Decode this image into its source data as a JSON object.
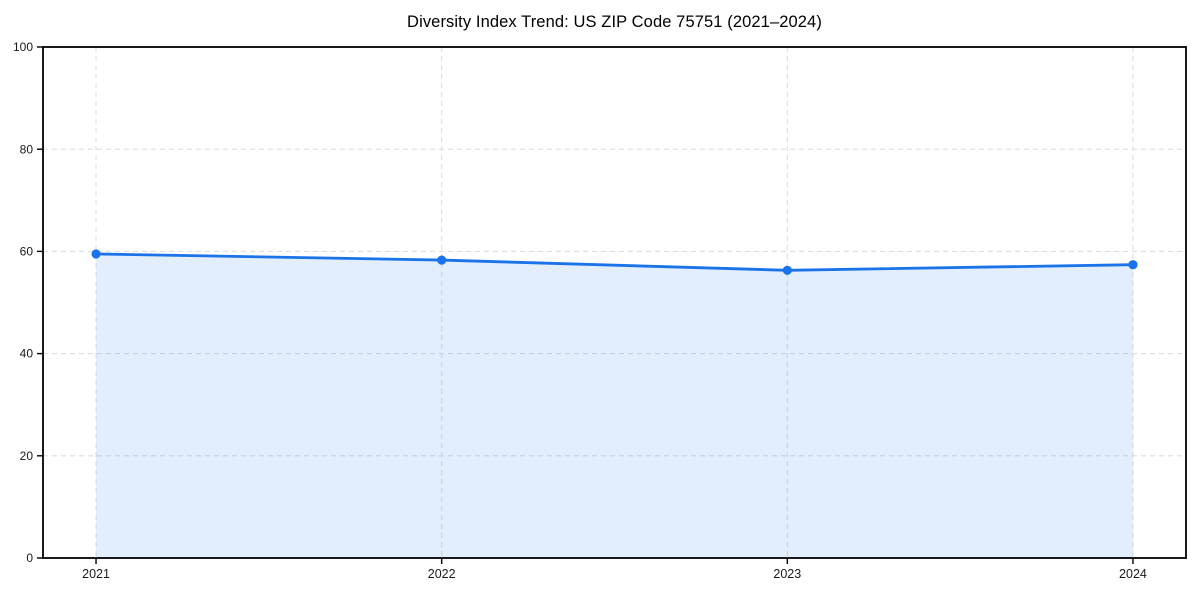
{
  "figure": {
    "background": "#ffffff"
  },
  "chart_data": {
    "type": "area",
    "title": "Diversity Index Trend: US ZIP Code 75751 (2021–2024)",
    "x": [
      "2021",
      "2022",
      "2023",
      "2024"
    ],
    "series": [
      {
        "name": "Diversity Index",
        "values": [
          59.5,
          58.3,
          56.3,
          57.4
        ]
      }
    ],
    "xlabel": "",
    "ylabel": "",
    "ylim": [
      0,
      100
    ],
    "yticks": [
      0,
      20,
      40,
      60,
      80,
      100
    ],
    "grid": "dashed",
    "legend_position": "none",
    "colors": {
      "line": "#1a73e8",
      "marker": "#1a73e8",
      "area_fill": "rgba(26,115,232,0.12)",
      "grid": "#dedede",
      "axis": "#000000",
      "tick_label": "#1a1a1a",
      "title": "#000000",
      "background": "#ffffff"
    }
  }
}
